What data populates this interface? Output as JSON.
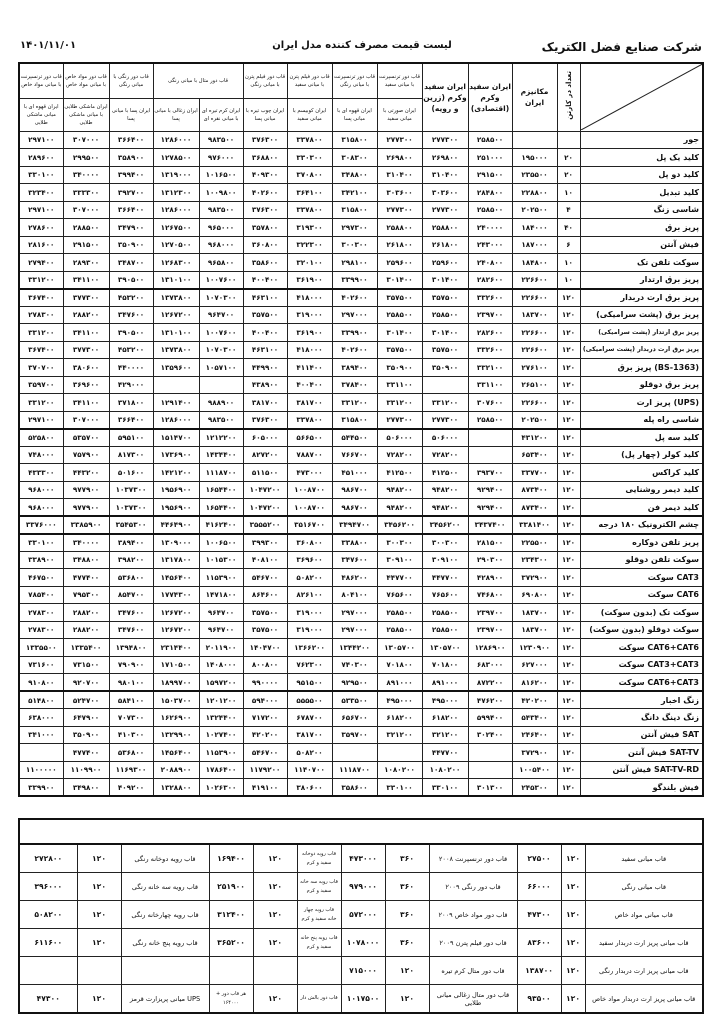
{
  "header": {
    "company": "شرکت صنایع فضل الکتریک",
    "title": "لیست قیمت مصرف کننده مدل ایران",
    "date": "۱۴۰۱/۱۱/۰۱"
  },
  "columns": {
    "group_top": [
      "قاب دور ترنسپرنت با میانی مواد خاص",
      "قاب دور مواد خاص با میانی مواد خاص",
      "قاب دور رنگی با میانی رنگی",
      "قاب دور متال با میانی رنگی",
      "قاب دور فیلم پترن با میانی رنگی",
      "قاب دور فیلم پترن با میانی سفید",
      "قاب دور ترنسپرنت با میانی رنگی",
      "قاب دور ترنسپرنت با میانی سفید"
    ],
    "sub": [
      "ایران قهوه ای با میانی ماشکی طلایی",
      "ایران ماشکی طلایی با میانی ماشکی طلایی",
      "ایران پسا با میانی پسا",
      "ایران زغالی با میانی پسا",
      "ایران کرم تیره ای با میانی نقره ای",
      "ایران چوب تیره با میانی پسا",
      "ایران کوبیسم با میانی سفید",
      "ایران قهوه ای با میانی پسا",
      "ایران صورتی با میانی سفید"
    ],
    "zarin": "ایران سفید وکرم (زرین و رویه)",
    "eghtesadi": "ایران سفید وکرم (اقتصادی)",
    "mechanism": "مکانیزم ایران",
    "count": "تعداد در کارتن"
  },
  "rows": [
    {
      "name": "جور",
      "v": [
        "۲۹۷۱۰۰",
        "۳۰۷۰۰۰",
        "۳۶۶۴۰۰",
        "۱۲۸۶۰۰۰",
        "۹۸۳۵۰۰",
        "۳۷۶۳۰۰",
        "۳۳۷۸۰۰",
        "۳۱۵۸۰۰",
        "۲۷۷۳۰۰",
        "۲۷۷۳۰۰",
        "۲۵۸۵۰۰",
        "",
        ""
      ]
    },
    {
      "name": "کلید یک پل",
      "v": [
        "۲۸۹۶۰۰",
        "۲۹۹۵۰۰",
        "۳۵۸۹۰۰",
        "۱۲۷۸۵۰۰",
        "۹۷۶۰۰۰",
        "۳۶۸۸۰۰",
        "۳۳۰۳۰۰",
        "۳۰۸۳۰۰",
        "۲۶۹۸۰۰",
        "۲۶۹۸۰۰",
        "۲۵۱۰۰۰",
        "۱۹۵۰۰۰",
        "۲۰"
      ]
    },
    {
      "name": "کلید دو پل",
      "v": [
        "۳۳۰۱۰۰",
        "۳۴۰۰۰۰",
        "۳۹۹۴۰۰",
        "۱۳۱۹۰۰۰",
        "۱۰۱۶۵۰۰",
        "۴۰۹۳۰۰",
        "۳۷۰۸۰۰",
        "۳۴۸۸۰۰",
        "۳۱۰۴۰۰",
        "۳۱۰۴۰۰",
        "۲۹۱۵۰۰",
        "۲۳۵۵۰۰",
        "۲۰"
      ]
    },
    {
      "name": "کلید تبدیل",
      "v": [
        "۳۲۳۴۰۰",
        "۳۳۳۳۰۰",
        "۳۹۲۷۰۰",
        "۱۳۱۲۳۰۰",
        "۱۰۰۹۸۰۰",
        "۴۰۲۶۰۰",
        "۳۶۴۱۰۰",
        "۳۴۲۱۰۰",
        "۳۰۳۶۰۰",
        "۳۰۳۶۰۰",
        "۲۸۴۸۰۰",
        "۲۲۸۸۰۰",
        "۱۰"
      ]
    },
    {
      "name": "شاسی زنگ",
      "v": [
        "۲۹۷۱۰۰",
        "۳۰۷۰۰۰",
        "۳۶۶۴۰۰",
        "۱۲۸۶۰۰۰",
        "۹۸۳۵۰۰",
        "۳۷۶۳۰۰",
        "۳۳۷۸۰۰",
        "۳۱۵۸۰۰",
        "۲۷۷۳۰۰",
        "۲۷۷۳۰۰",
        "۲۵۸۵۰۰",
        "۲۰۲۵۰۰",
        "۴"
      ]
    },
    {
      "name": "پریز برق",
      "v": [
        "۲۷۸۶۰۰",
        "۲۸۸۵۰۰",
        "۳۴۷۹۰۰",
        "۱۲۶۷۵۰۰",
        "۹۶۵۰۰۰",
        "۳۵۷۸۰۰",
        "۳۱۹۳۰۰",
        "۲۹۷۳۰۰",
        "۲۵۸۸۰۰",
        "۲۵۸۸۰۰",
        "۲۴۰۰۰۰",
        "۱۸۴۰۰۰",
        "۴۰"
      ]
    },
    {
      "name": "فیش آنتن",
      "v": [
        "۲۸۱۶۰۰",
        "۲۹۱۵۰۰",
        "۳۵۰۹۰۰",
        "۱۲۷۰۵۰۰",
        "۹۶۸۰۰۰",
        "۳۶۰۸۰۰",
        "۳۲۲۳۰۰",
        "۳۰۰۳۰۰",
        "۲۶۱۸۰۰",
        "۲۶۱۸۰۰",
        "۲۴۳۰۰۰",
        "۱۸۷۰۰۰",
        "۶"
      ]
    },
    {
      "name": "سوکت تلفن تک",
      "v": [
        "۲۷۹۴۰۰",
        "۲۸۹۳۰۰",
        "۳۴۸۷۰۰",
        "۱۲۶۸۳۰۰",
        "۹۶۵۸۰۰",
        "۳۵۸۶۰۰",
        "۳۲۰۱۰۰",
        "۲۹۸۱۰۰",
        "۲۵۹۶۰۰",
        "۲۵۹۶۰۰",
        "۲۴۰۸۰۰",
        "۱۸۴۸۰۰",
        "۱۰"
      ]
    },
    {
      "name": "پریز برق ارتدار",
      "v": [
        "۳۳۱۲۰۰",
        "۳۴۱۱۰۰",
        "۳۹۰۵۰۰",
        "۱۳۱۰۱۰۰",
        "۱۰۰۷۶۰۰",
        "۴۰۰۴۰۰",
        "۳۶۱۹۰۰",
        "۳۳۹۹۰۰",
        "۳۰۱۴۰۰",
        "۳۰۱۴۰۰",
        "۲۸۲۶۰۰",
        "۲۲۶۶۰۰",
        "۱۰"
      ]
    },
    {
      "name": "پریز برق ارت دربدار",
      "v": [
        "۳۶۷۴۰۰",
        "۳۷۷۳۰۰",
        "۴۵۳۲۰۰",
        "۱۳۷۳۸۰۰",
        "۱۰۷۰۳۰۰",
        "۴۶۳۱۰۰",
        "۴۱۸۰۰۰",
        "۴۰۲۶۰۰",
        "۳۵۷۵۰۰",
        "۳۵۷۵۰۰",
        "۳۳۲۶۰۰",
        "۲۲۶۶۰۰",
        "۱۲۰"
      ]
    },
    {
      "name": "پریز برق (پشت سرامیکی)",
      "v": [
        "۲۷۸۳۰۰",
        "۲۸۸۲۰۰",
        "۳۴۷۶۰۰",
        "۱۲۶۷۲۰۰",
        "۹۶۴۷۰۰",
        "۳۵۷۵۰۰",
        "۳۱۹۰۰۰",
        "۲۹۷۰۰۰",
        "۲۵۸۵۰۰",
        "۲۵۸۵۰۰",
        "۲۳۹۷۰۰",
        "۱۸۳۷۰۰",
        "۱۲۰"
      ]
    },
    {
      "name": "پریز برق ارتدار (پشت سرامیکی)",
      "v": [
        "۳۳۱۲۰۰",
        "۳۴۱۱۰۰",
        "۳۹۰۵۰۰",
        "۱۳۱۰۱۰۰",
        "۱۰۰۷۶۰۰",
        "۴۰۰۴۰۰",
        "۳۶۱۹۰۰",
        "۳۳۹۹۰۰",
        "۳۰۱۴۰۰",
        "۳۰۱۴۰۰",
        "۲۸۲۶۰۰",
        "۲۲۶۶۰۰",
        "۱۲۰"
      ]
    },
    {
      "name": "پریز برق ارت دربدار (پشت سرامیکی)",
      "v": [
        "۳۶۷۴۰۰",
        "۳۷۷۳۰۰",
        "۴۵۳۲۰۰",
        "۱۳۷۳۸۰۰",
        "۱۰۷۰۳۰۰",
        "۴۶۳۱۰۰",
        "۴۱۸۰۰۰",
        "۴۰۲۶۰۰",
        "۳۵۷۵۰۰",
        "۳۵۷۵۰۰",
        "۳۳۲۶۰۰",
        "۲۲۶۶۰۰",
        "۱۲۰"
      ]
    },
    {
      "name": "پریز برق (BS-1363)",
      "v": [
        "۳۷۰۷۰۰",
        "۳۸۰۶۰۰",
        "۴۴۰۰۰۰",
        "۱۳۵۹۶۰۰",
        "۱۰۵۷۱۰۰",
        "۴۴۹۹۰۰",
        "۴۱۱۴۰۰",
        "۳۸۹۴۰۰",
        "۳۵۰۹۰۰",
        "۳۵۰۹۰۰",
        "۳۳۲۱۰۰",
        "۲۷۶۱۰۰",
        "۱۲۰"
      ]
    },
    {
      "name": "پریز برق دوقلو",
      "v": [
        "۳۵۹۷۰۰",
        "۳۶۹۶۰۰",
        "۴۲۹۰۰۰",
        "",
        "",
        "۴۳۸۹۰۰",
        "۴۰۰۴۰۰",
        "۳۷۸۴۰۰",
        "۳۳۱۱۰۰",
        "",
        "۳۳۱۱۰۰",
        "۲۶۵۱۰۰",
        "۱۲۰"
      ]
    },
    {
      "name": "پریز ارت (UPS)",
      "v": [
        "۳۳۱۲۰۰",
        "۳۴۱۱۰۰",
        "۳۷۱۸۰۰",
        "۱۲۹۱۴۰۰",
        "۹۸۸۹۰۰",
        "۳۸۱۷۰۰",
        "۳۸۱۷۰۰",
        "۳۳۱۲۰۰",
        "۳۳۱۲۰۰",
        "۳۳۱۲۰۰",
        "۳۰۷۶۰۰",
        "۲۲۶۶۰۰",
        "۱۲۰"
      ]
    },
    {
      "name": "شاسی راه پله",
      "v": [
        "۲۹۷۱۰۰",
        "۳۰۷۰۰۰",
        "۳۶۶۴۰۰",
        "۱۲۸۶۰۰۰",
        "۹۸۳۵۰۰",
        "۳۷۶۳۰۰",
        "۳۳۷۸۰۰",
        "۳۱۵۸۰۰",
        "۲۷۷۳۰۰",
        "۲۷۷۳۰۰",
        "۲۵۸۵۰۰",
        "۲۰۲۵۰۰",
        "۱۲۰"
      ]
    },
    {
      "name": "کلید سه پل",
      "v": [
        "۵۲۵۸۰۰",
        "۵۳۵۷۰۰",
        "۵۹۵۱۰۰",
        "۱۵۱۴۷۰۰",
        "۱۲۱۲۲۰۰",
        "۶۰۵۰۰۰",
        "۵۶۶۵۰۰",
        "۵۴۴۵۰۰",
        "۵۰۶۰۰۰",
        "۵۰۶۰۰۰",
        "",
        "۴۳۱۲۰۰",
        "۱۲۰"
      ]
    },
    {
      "name": "کلید کولر (چهار پل)",
      "v": [
        "۷۴۸۰۰۰",
        "۷۵۷۹۰۰",
        "۸۱۷۳۰۰",
        "۱۷۳۶۹۰۰",
        "۱۴۳۴۴۰۰",
        "۸۲۷۲۰۰",
        "۷۸۸۷۰۰",
        "۷۶۶۷۰۰",
        "۷۲۸۲۰۰",
        "۷۲۸۲۰۰",
        "",
        "۶۵۳۴۰۰",
        "۱۲۰"
      ]
    },
    {
      "name": "کلید کراکس",
      "v": [
        "۴۳۳۳۰۰",
        "۴۴۳۲۰۰",
        "۵۰۱۶۰۰",
        "۱۴۲۱۲۰۰",
        "۱۱۱۸۷۰۰",
        "۵۱۱۵۰۰",
        "۴۷۳۰۰۰",
        "۴۵۱۰۰۰",
        "۴۱۲۵۰۰",
        "۴۱۲۵۰۰",
        "۳۹۳۷۰۰",
        "۳۳۷۷۰۰",
        "۱۲۰"
      ]
    },
    {
      "name": "کلید دیمر روشنایی",
      "v": [
        "۹۶۸۰۰۰",
        "۹۷۷۹۰۰",
        "۱۰۳۷۳۰۰",
        "۱۹۵۶۹۰۰",
        "۱۶۵۴۴۰۰",
        "۱۰۴۷۲۰۰",
        "۱۰۰۸۷۰۰",
        "۹۸۶۷۰۰",
        "۹۴۸۲۰۰",
        "۹۴۸۲۰۰",
        "۹۲۹۴۰۰",
        "۸۷۳۴۰۰",
        "۱۲۰"
      ]
    },
    {
      "name": "کلید دیمر فن",
      "v": [
        "۹۶۸۰۰۰",
        "۹۷۷۹۰۰",
        "۱۰۳۷۳۰۰",
        "۱۹۵۶۹۰۰",
        "۱۶۵۴۴۰۰",
        "۱۰۴۷۲۰۰",
        "۱۰۰۸۷۰۰",
        "۹۸۶۷۰۰",
        "۹۴۸۲۰۰",
        "۹۴۸۲۰۰",
        "۹۲۹۴۰۰",
        "۸۷۳۴۰۰",
        "۱۲۰"
      ]
    },
    {
      "name": "چشم الکترونیک ۱۸۰ درجه",
      "v": [
        "۳۳۷۶۰۰۰",
        "۳۳۸۵۹۰۰",
        "۳۵۴۵۳۰۰",
        "۴۴۶۴۹۰۰",
        "۴۱۶۲۴۰۰",
        "۳۵۵۵۲۰۰",
        "۳۵۱۶۷۰۰",
        "۳۴۹۴۷۰۰",
        "۳۴۵۶۲۰۰",
        "۳۴۵۶۲۰۰",
        "۳۴۳۷۴۰۰",
        "۳۳۸۱۴۰۰",
        "۱۲۰"
      ]
    },
    {
      "name": "پریز تلفن دوکاره",
      "v": [
        "۳۳۰۱۰۰",
        "۳۴۰۰۰۰",
        "۳۸۹۴۰۰",
        "۱۳۰۹۰۰۰",
        "۱۰۰۶۵۰۰",
        "۳۹۹۳۰۰",
        "۳۶۰۸۰۰",
        "۳۳۸۸۰۰",
        "۳۰۰۳۰۰",
        "۳۰۰۳۰۰",
        "۲۸۱۵۰۰",
        "۲۲۵۵۰۰",
        "۱۲۰"
      ]
    },
    {
      "name": "سوکت تلفن دوقلو",
      "v": [
        "۳۳۸۹۰۰",
        "۳۴۸۸۰۰",
        "۳۹۸۲۰۰",
        "۱۳۱۷۸۰۰",
        "۱۰۱۵۳۰۰",
        "۴۰۸۱۰۰",
        "۳۶۹۶۰۰",
        "۳۴۷۶۰۰",
        "۳۰۹۱۰۰",
        "۳۰۹۱۰۰",
        "۲۹۰۳۰۰",
        "۲۳۴۳۰۰",
        "۱۲۰"
      ]
    },
    {
      "name": "سوکت CAT3",
      "v": [
        "۴۶۷۵۰۰",
        "۴۷۷۴۰۰",
        "۵۳۶۸۰۰",
        "۱۴۵۶۴۰۰",
        "۱۱۵۳۹۰۰",
        "۵۴۶۷۰۰",
        "۵۰۸۲۰۰",
        "۴۸۶۲۰۰",
        "۴۴۷۷۰۰",
        "۴۴۷۷۰۰",
        "۴۲۸۹۰۰",
        "۳۷۲۹۰۰",
        "۱۲۰"
      ]
    },
    {
      "name": "سوکت CAT6",
      "v": [
        "۷۸۵۴۰۰",
        "۷۹۵۳۰۰",
        "۸۵۴۷۰۰",
        "۱۷۷۴۳۰۰",
        "۱۴۷۱۸۰۰",
        "۸۶۴۶۰۰",
        "۸۲۶۱۰۰",
        "۸۰۴۱۰۰",
        "۷۶۵۶۰۰",
        "۷۶۵۶۰۰",
        "۷۴۶۸۰۰",
        "۶۹۰۸۰۰",
        "۱۲۰"
      ]
    },
    {
      "name": "سوکت تک (بدون سوکت)",
      "v": [
        "۲۷۸۳۰۰",
        "۲۸۸۲۰۰",
        "۳۴۷۶۰۰",
        "۱۲۶۷۲۰۰",
        "۹۶۴۷۰۰",
        "۳۵۷۵۰۰",
        "۳۱۹۰۰۰",
        "۲۹۷۰۰۰",
        "۲۵۸۵۰۰",
        "۲۵۸۵۰۰",
        "۲۳۹۷۰۰",
        "۱۸۳۷۰۰",
        "۱۲۰"
      ]
    },
    {
      "name": "سوکت دوقلو (بدون سوکت)",
      "v": [
        "۲۷۸۳۰۰",
        "۲۸۸۲۰۰",
        "۳۴۷۶۰۰",
        "۱۲۶۷۲۰۰",
        "۹۶۴۷۰۰",
        "۳۵۷۵۰۰",
        "۳۱۹۰۰۰",
        "۲۹۷۰۰۰",
        "۲۵۸۵۰۰",
        "۲۵۸۵۰۰",
        "۲۳۹۷۰۰",
        "۱۸۳۷۰۰",
        "۱۲۰"
      ]
    },
    {
      "name": "سوکت CAT6+CAT6",
      "v": [
        "۱۳۳۵۵۰۰",
        "۱۳۳۵۴۰۰",
        "۱۳۹۴۸۰۰",
        "۲۳۱۴۴۰۰",
        "۲۰۱۱۹۰۰",
        "۱۴۰۴۷۰۰",
        "۱۳۶۶۲۰۰",
        "۱۳۴۴۲۰۰",
        "۱۳۰۵۷۰۰",
        "۱۳۰۵۷۰۰",
        "۱۲۸۶۹۰۰",
        "۱۲۳۰۹۰۰",
        "۱۲۰"
      ]
    },
    {
      "name": "سوکت CAT3+CAT3",
      "v": [
        "۷۳۱۶۰۰",
        "۷۳۱۵۰۰",
        "۷۹۰۹۰۰",
        "۱۷۱۰۵۰۰",
        "۱۴۰۸۰۰۰",
        "۸۰۰۸۰۰",
        "۷۶۲۳۰۰",
        "۷۴۰۳۰۰",
        "۷۰۱۸۰۰",
        "۷۰۱۸۰۰",
        "۶۸۳۰۰۰",
        "۶۲۷۰۰۰",
        "۱۲۰"
      ]
    },
    {
      "name": "سوکت CAT6+CAT3",
      "v": [
        "۹۱۰۸۰۰",
        "۹۲۰۷۰۰",
        "۹۸۰۱۰۰",
        "۱۸۹۹۷۰۰",
        "۱۵۹۷۲۰۰",
        "۹۹۰۰۰۰",
        "۹۵۱۵۰۰",
        "۹۲۹۵۰۰",
        "۸۹۱۰۰۰",
        "۸۹۱۰۰۰",
        "۸۷۲۲۰۰",
        "۸۱۶۲۰۰",
        "۱۲۰"
      ]
    },
    {
      "name": "زنگ اخبار",
      "v": [
        "۵۱۴۸۰۰",
        "۵۲۴۷۰۰",
        "۵۸۴۱۰۰",
        "۱۵۰۳۷۰۰",
        "۱۲۰۱۲۰۰",
        "۵۹۴۰۰۰",
        "۵۵۵۵۰۰",
        "۵۳۳۵۰۰",
        "۴۹۵۰۰۰",
        "۴۹۵۰۰۰",
        "۴۷۶۲۰۰",
        "۴۲۰۲۰۰",
        "۱۲۰"
      ]
    },
    {
      "name": "زنگ دینگ دانگ",
      "v": [
        "۶۳۸۰۰۰",
        "۶۴۷۹۰۰",
        "۷۰۷۳۰۰",
        "۱۶۲۶۹۰۰",
        "۱۳۲۴۴۰۰",
        "۷۱۷۲۰۰",
        "۶۷۸۷۰۰",
        "۶۵۶۷۰۰",
        "۶۱۸۲۰۰",
        "۶۱۸۲۰۰",
        "۵۹۹۴۰۰",
        "۵۴۳۴۰۰",
        "۱۲۰"
      ]
    },
    {
      "name": "فیش آنتن SAT",
      "v": [
        "۳۴۱۰۰۰",
        "۳۵۰۹۰۰",
        "۴۱۰۳۰۰",
        "۱۳۲۹۹۰۰",
        "۱۰۲۷۴۰۰",
        "۴۲۰۲۰۰",
        "۳۸۱۷۰۰",
        "۳۵۹۷۰۰",
        "۳۲۱۲۰۰",
        "۳۲۱۲۰۰",
        "۳۰۲۴۰۰",
        "۲۴۶۴۰۰",
        "۱۲۰"
      ]
    },
    {
      "name": "فیش آنتن SAT-TV",
      "v": [
        "",
        "۴۷۷۴۰۰",
        "۵۳۶۸۰۰",
        "۱۴۵۶۴۰۰",
        "۱۱۵۳۹۰۰",
        "۵۴۶۷۰۰",
        "۵۰۸۲۰۰",
        "",
        "",
        "۴۴۷۷۰۰",
        "",
        "۳۷۲۹۰۰",
        "۱۲۰"
      ]
    },
    {
      "name": "فیش آنتن SAT-TV-RD",
      "v": [
        "۱۱۰۰۰۰۰",
        "۱۱۰۹۹۰۰",
        "۱۱۶۹۳۰۰",
        "۲۰۸۸۹۰۰",
        "۱۷۸۶۴۰۰",
        "۱۱۷۹۲۰۰",
        "۱۱۴۰۷۰۰",
        "۱۱۱۸۷۰۰",
        "۱۰۸۰۲۰۰",
        "۱۰۸۰۲۰۰",
        "",
        "۱۰۰۵۴۰۰",
        "۱۲۰"
      ]
    },
    {
      "name": "فیش بلندگو",
      "v": [
        "۳۳۹۹۰۰",
        "۳۴۹۸۰۰",
        "۴۰۹۲۰۰",
        "۱۳۲۸۸۰۰",
        "۱۰۲۶۳۰۰",
        "۴۱۹۱۰۰",
        "۳۸۰۶۰۰",
        "۳۵۸۶۰۰",
        "۳۳۰۱۰۰",
        "۳۳۰۱۰۰",
        "۳۰۱۳۰۰",
        "۲۴۵۳۰۰",
        "۱۲۰"
      ]
    }
  ],
  "frames": [
    [
      "۲۷۲۸۰۰",
      "۱۲۰",
      "قاب رویه دوخانه رنگی",
      "۱۶۹۴۰۰",
      "۱۲۰",
      "قاب رویه دوخانه سفید و کرم",
      "۴۷۳۰۰۰",
      "۳۶۰",
      "قاب دور ترنسپرنت ۲۰۰۸",
      "۲۷۵۰۰",
      "۱۲۰",
      "قاب میانی سفید"
    ],
    [
      "۳۹۶۰۰۰",
      "۱۲۰",
      "قاب رویه سه خانه رنگی",
      "۲۵۱۹۰۰",
      "۱۲۰",
      "قاب رویه سه خانه سفید و کرم",
      "۹۷۹۰۰۰",
      "۳۶۰",
      "قاب دور رنگی ۲۰۰۹",
      "۶۶۰۰۰",
      "۱۲۰",
      "قاب میانی رنگی"
    ],
    [
      "۵۰۸۲۰۰",
      "۱۲۰",
      "قاب رویه چهارخانه رنگی",
      "۳۱۲۴۰۰",
      "۱۲۰",
      "قاب رویه چهار خانه سفید و کرم",
      "۵۷۲۰۰۰",
      "۳۶۰",
      "قاب دور مواد خاص ۲۰۰۹",
      "۴۷۳۰۰",
      "۱۲۰",
      "قاب میانی مواد خاص"
    ],
    [
      "۶۱۱۶۰۰",
      "۱۲۰",
      "قاب رویه پنج خانه رنگی",
      "۳۶۵۲۰۰",
      "۱۲۰",
      "قاب رویه پنج خانه سفید و کرم",
      "۱۰۷۸۰۰۰",
      "۳۶۰",
      "قاب دور فیلم پترن ۲۰۰۹",
      "۸۳۶۰۰",
      "۱۲۰",
      "قاب میانی پریز ارت دربدار سفید"
    ],
    [
      "",
      "",
      "",
      "",
      "",
      "",
      "۷۱۵۰۰۰",
      "۱۲۰",
      "قاب دور متال کرم تیره",
      "۱۳۸۷۰۰",
      "۱۲۰",
      "قاب میانی پریز ارت دربدار رنگی"
    ],
    [
      "۴۷۳۰۰",
      "۱۲۰",
      "میانی پریزارت قرمز UPS",
      "هر قاب دور + ۱۶۴۰۰۰",
      "۱۲۰",
      "قاب دور بالش دار",
      "۱۰۱۷۵۰۰",
      "۱۲۰",
      "قاب دور متال زغالی میانی طلایی",
      "۹۳۵۰۰",
      "۱۲۰",
      "قاب میانی پریز ارت دربدار مواد خاص"
    ]
  ]
}
